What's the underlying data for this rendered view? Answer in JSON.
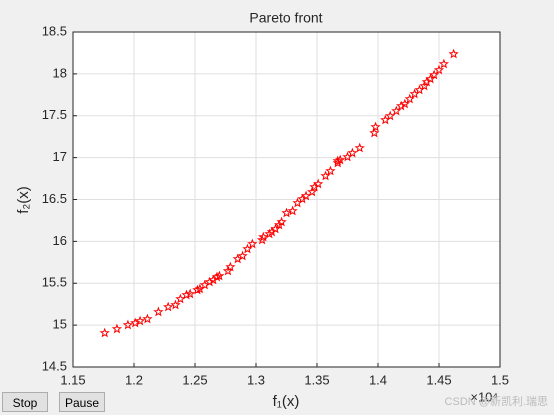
{
  "chart_data": {
    "type": "scatter",
    "title": "Pareto front",
    "xlabel": "f₁(x)",
    "ylabel": "f₂(x)",
    "x_exponent": "×10⁴",
    "x": [
      1.176,
      1.186,
      1.195,
      1.201,
      1.205,
      1.211,
      1.22,
      1.228,
      1.234,
      1.238,
      1.243,
      1.246,
      1.252,
      1.254,
      1.258,
      1.262,
      1.265,
      1.268,
      1.27,
      1.277,
      1.279,
      1.285,
      1.289,
      1.293,
      1.297,
      1.305,
      1.306,
      1.311,
      1.313,
      1.316,
      1.319,
      1.321,
      1.325,
      1.33,
      1.334,
      1.338,
      1.341,
      1.346,
      1.348,
      1.351,
      1.357,
      1.361,
      1.367,
      1.367,
      1.369,
      1.375,
      1.379,
      1.385,
      1.397,
      1.398,
      1.406,
      1.41,
      1.415,
      1.419,
      1.422,
      1.426,
      1.43,
      1.434,
      1.438,
      1.44,
      1.443,
      1.446,
      1.45,
      1.454,
      1.462
    ],
    "values": [
      14.906,
      14.954,
      15.001,
      15.025,
      15.049,
      15.073,
      15.157,
      15.216,
      15.24,
      15.312,
      15.36,
      15.372,
      15.419,
      15.431,
      15.479,
      15.515,
      15.539,
      15.575,
      15.587,
      15.646,
      15.694,
      15.79,
      15.825,
      15.909,
      15.969,
      16.016,
      16.052,
      16.088,
      16.112,
      16.148,
      16.196,
      16.231,
      16.339,
      16.363,
      16.458,
      16.506,
      16.542,
      16.59,
      16.649,
      16.685,
      16.781,
      16.84,
      16.936,
      16.96,
      16.972,
      17.007,
      17.055,
      17.115,
      17.294,
      17.366,
      17.449,
      17.497,
      17.557,
      17.616,
      17.64,
      17.7,
      17.76,
      17.807,
      17.855,
      17.903,
      17.939,
      17.987,
      18.046,
      18.118,
      18.237
    ],
    "color": "#ff0000",
    "marker": "star",
    "grid": true,
    "xlim": [
      1.15,
      1.5
    ],
    "xticks": [
      1.15,
      1.2,
      1.25,
      1.3,
      1.35,
      1.4,
      1.45,
      1.5
    ],
    "ylim": [
      14.5,
      18.5
    ],
    "yticks": [
      14.5,
      15,
      15.5,
      16,
      16.5,
      17,
      17.5,
      18,
      18.5
    ]
  },
  "controls": {
    "buttons": [
      "Stop",
      "Pause"
    ]
  },
  "watermark": "CSDN @新凯利.瑞思"
}
